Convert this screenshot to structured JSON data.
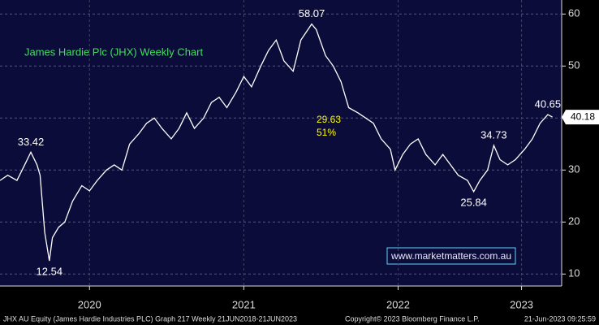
{
  "chart_data": {
    "type": "line",
    "title": "James Hardie Plc (JHX) Weekly Chart",
    "x": [
      2019.92,
      2019.97,
      2020.03,
      2020.08,
      2020.12,
      2020.16,
      2020.18,
      2020.21,
      2020.24,
      2020.26,
      2020.3,
      2020.34,
      2020.39,
      2020.45,
      2020.5,
      2020.55,
      2020.61,
      2020.66,
      2020.71,
      2020.76,
      2020.82,
      2020.87,
      2020.92,
      2020.97,
      2021.03,
      2021.08,
      2021.13,
      2021.18,
      2021.24,
      2021.29,
      2021.34,
      2021.39,
      2021.45,
      2021.5,
      2021.55,
      2021.61,
      2021.66,
      2021.71,
      2021.76,
      2021.82,
      2021.87,
      2021.94,
      2021.97,
      2022.03,
      2022.08,
      2022.13,
      2022.18,
      2022.24,
      2022.29,
      2022.34,
      2022.39,
      2022.45,
      2022.48,
      2022.53,
      2022.58,
      2022.63,
      2022.68,
      2022.74,
      2022.79,
      2022.84,
      2022.89,
      2022.95,
      2022.99,
      2023.03,
      2023.08,
      2023.12,
      2023.16,
      2023.21,
      2023.26,
      2023.32,
      2023.37,
      2023.42,
      2023.47,
      2023.5
    ],
    "series": [
      {
        "name": "JHX AU Equity",
        "color": "#ffffff",
        "values": [
          28,
          29,
          28,
          31,
          33.42,
          31,
          29,
          18,
          12.54,
          17,
          19,
          20,
          24,
          27,
          26,
          28,
          30,
          31,
          30,
          35,
          37,
          39,
          40,
          38,
          36,
          38,
          41,
          38,
          40,
          43,
          44,
          42,
          45,
          48,
          46,
          50,
          53,
          55,
          51,
          49,
          55,
          58.07,
          57,
          52,
          50,
          47,
          42,
          41,
          40,
          39,
          36,
          34,
          30,
          33,
          35,
          36,
          33,
          31,
          33,
          31,
          29,
          28,
          25.84,
          28,
          30,
          34.73,
          32,
          31,
          32,
          34,
          36,
          39,
          40.65,
          40.18
        ]
      }
    ],
    "labeled_points": [
      4,
      8,
      41,
      62,
      65,
      72
    ],
    "annotations": [
      "29.63",
      "51%"
    ],
    "watermark": "www.marketmatters.com.au",
    "footer": [
      "JHX AU Equity (James Hardie Industries PLC) Graph 217  Weekly 21JUN2018-21JUN2023",
      "Copyright© 2023 Bloomberg Finance L.P.",
      "21-Jun-2023 09:25:59"
    ],
    "xlim": [
      2019.92,
      2023.56
    ],
    "xticks": [
      {
        "value": 2020.5,
        "label": "2020"
      },
      {
        "value": 2021.5,
        "label": "2021"
      },
      {
        "value": 2022.5,
        "label": "2022"
      },
      {
        "value": 2023.3,
        "label": "2023"
      }
    ],
    "ylim": [
      7.7,
      62.7
    ],
    "yticks": [
      10,
      20,
      30,
      40,
      50,
      60
    ],
    "grid": true
  }
}
